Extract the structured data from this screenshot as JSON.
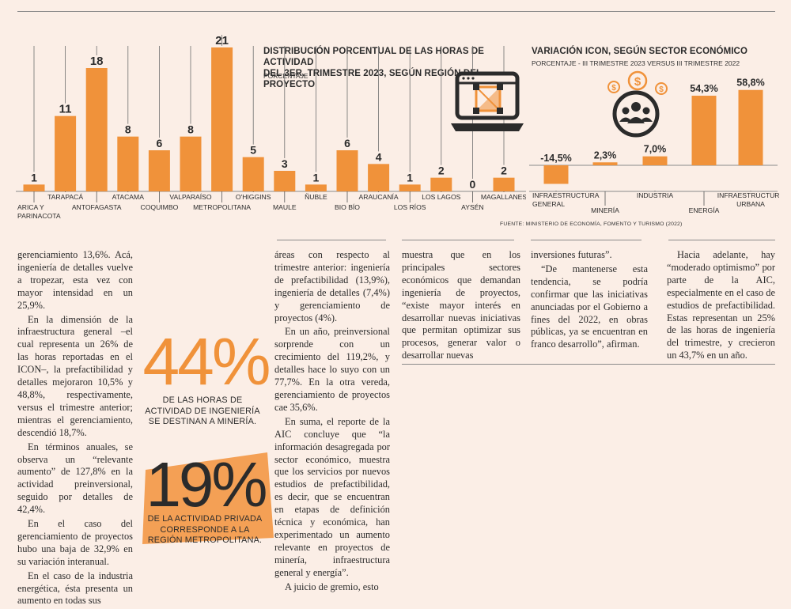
{
  "colors": {
    "bar": "#f0923a",
    "icon_accent": "#f0923a",
    "text": "#2b2b2b",
    "axis": "#8a8a8a"
  },
  "chart_data": [
    {
      "type": "bar",
      "title": "DISTRIBUCIÓN PORCENTUAL DE LAS HORAS DE ACTIVIDAD DEL 3ER. TRIMESTRE 2023, SEGÚN REGIÓN DEL PROYECTO",
      "title_lines": [
        "DISTRIBUCIÓN PORCENTUAL DE LAS HORAS DE ACTIVIDAD",
        "DEL 3ER. TRIMESTRE 2023, SEGÚN REGIÓN DEL PROYECTO"
      ],
      "subtitle": "PORCENTAJE",
      "categories": [
        "ARICA Y PARINACOTA",
        "TARAPACÁ",
        "ANTOFAGASTA",
        "ATACAMA",
        "COQUIMBO",
        "VALPARAÍSO",
        "METROPOLITANA",
        "O'HIGGINS",
        "MAULE",
        "ÑUBLE",
        "BIO BÍO",
        "ARAUCANÍA",
        "LOS RÍOS",
        "LOS LAGOS",
        "AYSÉN",
        "MAGALLANES"
      ],
      "category_lines": [
        [
          "ARICA Y",
          "PARINACOTA"
        ],
        [
          "TARAPACÁ"
        ],
        [
          "ANTOFAGASTA"
        ],
        [
          "ATACAMA"
        ],
        [
          "COQUIMBO"
        ],
        [
          "VALPARAÍSO"
        ],
        [
          "METROPOLITANA"
        ],
        [
          "O'HIGGINS"
        ],
        [
          "MAULE"
        ],
        [
          "ÑUBLE"
        ],
        [
          "BIO BÍO"
        ],
        [
          "ARAUCANÍA"
        ],
        [
          "LOS RÍOS"
        ],
        [
          "LOS LAGOS"
        ],
        [
          "AYSÉN"
        ],
        [
          "MAGALLANES"
        ]
      ],
      "values": [
        1,
        11,
        18,
        8,
        6,
        8,
        21,
        5,
        3,
        1,
        6,
        4,
        1,
        2,
        0,
        2
      ],
      "value_labels": [
        "1",
        "11",
        "18",
        "8",
        "6",
        "8",
        "21",
        "5",
        "3",
        "1",
        "6",
        "4",
        "1",
        "2",
        "0",
        "2"
      ],
      "ylim": [
        0,
        21
      ]
    },
    {
      "type": "bar",
      "title": "VARIACIÓN ICON, SEGÚN SECTOR ECONÓMICO",
      "subtitle": "PORCENTAJE - III TRIMESTRE 2023 VERSUS III TRIMESTRE 2022",
      "categories": [
        "INFRAESTRUCTURA GENERAL",
        "MINERÍA",
        "INDUSTRIA",
        "ENERGÍA",
        "INFRAESTRUCTURA URBANA"
      ],
      "category_lines": [
        [
          "INFRAESTRUCTURA",
          "GENERAL"
        ],
        [
          "MINERÍA"
        ],
        [
          "INDUSTRIA"
        ],
        [
          "ENERGÍA"
        ],
        [
          "INFRAESTRUCTURA",
          "URBANA"
        ]
      ],
      "values": [
        -14.5,
        2.3,
        7.0,
        54.3,
        58.8
      ],
      "value_labels": [
        "-14,5%",
        "2,3%",
        "7,0%",
        "54,3%",
        "58,8%"
      ],
      "ylim": [
        -20,
        60
      ]
    }
  ],
  "source": "FUENTE: MINISTERIO DE ECONOMÍA, FOMENTO Y TURISMO (2022)",
  "callouts": {
    "c1": {
      "number": "44%",
      "lines": [
        "DE LAS HORAS DE",
        "ACTIVIDAD DE INGENIERÍA",
        "SE DESTINAN A MINERÍA."
      ]
    },
    "c2": {
      "number": "19%",
      "lines": [
        "DE LA ACTIVIDAD PRIVADA",
        "CORRESPONDE A LA",
        "REGIÓN METROPOLITANA."
      ]
    }
  },
  "columns": {
    "col1": [
      "gerenciamiento 13,6%. Acá, ingeniería de detalles vuelve a tropezar, esta vez con mayor intensidad en un 25,9%.",
      "En la dimensión de la infraestructura general –el cual representa un 26% de las horas reportadas en el ICON–, la prefactibilidad y detalles mejoraron 10,5% y 48,8%, respectivamente, versus el trimestre anterior; mientras el gerenciamiento, descendió 18,7%.",
      "En términos anuales, se observa un “relevante aumento” de 127,8% en la actividad preinversional, seguido por detalles de 42,4%.",
      "En el caso del gerenciamiento de proyectos hubo una baja de 32,9% en su variación interanual.",
      "En el caso de la industria energética, ésta presenta un aumento en todas sus"
    ],
    "col2": [
      "áreas con respecto al trimestre anterior: ingeniería de prefactibilidad (13,9%), ingeniería de detalles (7,4%) y gerenciamiento de proyectos (4%).",
      "En un año, preinversional sorprende con un crecimiento del 119,2%, y detalles hace lo suyo con un 77,7%. En la otra vereda, gerenciamiento de proyectos cae 35,6%.",
      "En suma, el reporte de la AIC concluye que “la información desagregada por sector económico, muestra que los servicios por nuevos estudios de prefactibilidad, es decir, que se encuentran en etapas de definición técnica y económica, han experimentado un aumento relevante en proyectos de minería, infraestructura general y energía”.",
      "A juicio de gremio, esto"
    ],
    "col3": [
      "muestra que en los principales sectores económicos que demandan ingeniería de proyectos, “existe mayor interés en desarrollar nuevas iniciativas que permitan optimizar sus procesos, generar valor o desarrollar nuevas"
    ],
    "col4": [
      "inversiones futuras”.",
      "“De mantenerse esta tendencia, se podría confirmar que las iniciativas anunciadas por el Gobierno a fines del 2022, en obras públicas, ya se encuentran en franco desarrollo”, afirman."
    ],
    "col5": [
      "Hacia adelante, hay “moderado optimismo” por parte de la AIC, especialmente en el caso de estudios de prefactibilidad. Estas representan un 25% de las horas de ingeniería del trimestre, y crecieron un 43,7% en un año."
    ]
  }
}
